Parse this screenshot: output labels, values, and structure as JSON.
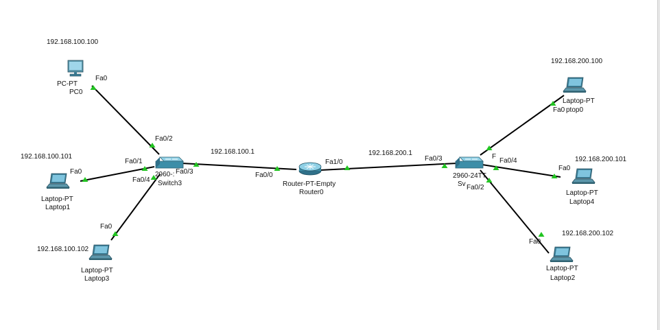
{
  "devices": {
    "pc0": {
      "type": "PC-PT",
      "name": "PC0",
      "ip": "192.168.100.100"
    },
    "laptop1": {
      "type": "Laptop-PT",
      "name": "Laptop1",
      "ip": "192.168.100.101"
    },
    "laptop3": {
      "type": "Laptop-PT",
      "name": "Laptop3",
      "ip": "192.168.100.102"
    },
    "switch3": {
      "type": "2960-24TT",
      "name": "Switch3",
      "type_visible": "2960-:",
      "ip": "192.168.100.1"
    },
    "router0": {
      "type": "Router-PT-Empty",
      "name": "Router0"
    },
    "switch_right": {
      "type": "2960-24TT",
      "name_visible": "Sv",
      "ip": "192.168.200.1"
    },
    "laptop0": {
      "type_visible": "Laptop-PT",
      "name_visible": "ptop0",
      "ip": "192.168.200.100"
    },
    "laptop4": {
      "type": "Laptop-PT",
      "name": "Laptop4",
      "ip": "192.168.200.101"
    },
    "laptop2": {
      "type": "Laptop-PT",
      "name": "Laptop2",
      "ip": "192.168.200.102"
    }
  },
  "ports": {
    "pc0_fa0": "Fa0",
    "sw3_fa0_2": "Fa0/2",
    "laptop1_fa0": "Fa0",
    "sw3_fa0_1": "Fa0/1",
    "sw3_fa0_4": "Fa0/4",
    "laptop3_fa0": "Fa0",
    "sw3_fa0_3": "Fa0/3",
    "router_fa0_0": "Fa0/0",
    "router_fa1_0": "Fa1/0",
    "swr_fa0_3": "Fa0/3",
    "swr_fa0_1_partial": "F",
    "swr_fa0_4": "Fa0/4",
    "swr_fa0_2": "Fa0/2",
    "laptop0_fa0": "Fa0",
    "laptop4_fa0": "Fa0",
    "laptop2_fa0": "Fa0"
  },
  "colors": {
    "cable": "#000000",
    "link_light": "#22c422",
    "device_teal": "#3d8ea8",
    "device_light": "#8fd0e6"
  }
}
